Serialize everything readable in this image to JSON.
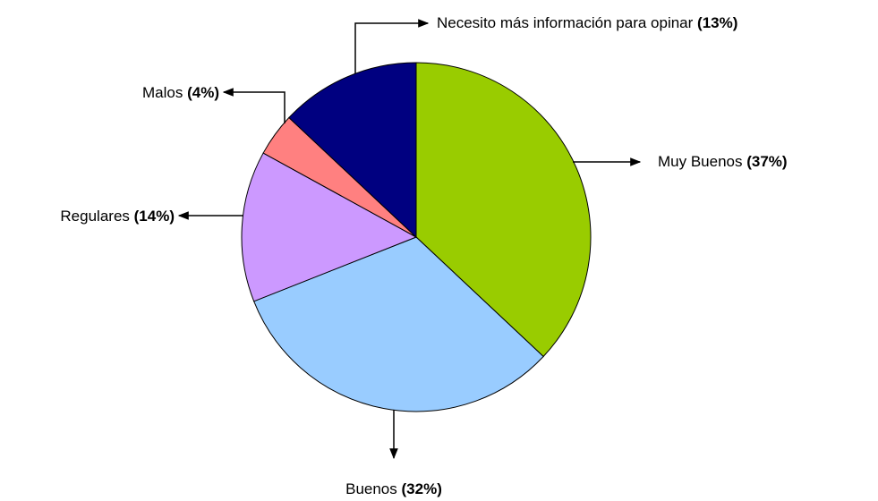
{
  "chart_data": {
    "type": "pie",
    "categories": [
      "Muy Buenos",
      "Buenos",
      "Regulares",
      "Malos",
      "Necesito más información para opinar"
    ],
    "values": [
      37,
      32,
      14,
      4,
      13
    ],
    "value_labels": [
      "(37%)",
      "(32%)",
      "(14%)",
      "(4%)",
      "(13%)"
    ],
    "colors": [
      "#99cc00",
      "#99ccff",
      "#cc99ff",
      "#ff8080",
      "#000080"
    ]
  }
}
